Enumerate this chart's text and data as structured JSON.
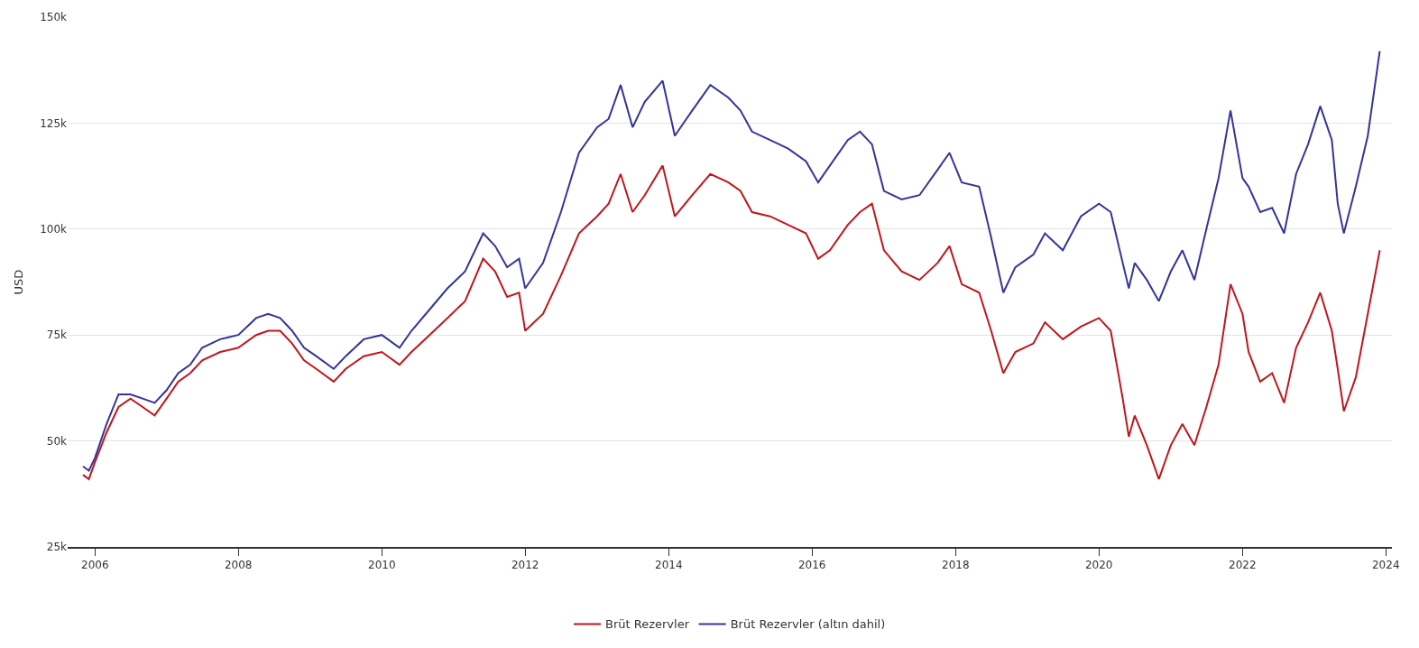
{
  "chart_data": {
    "type": "line",
    "ylabel": "USD",
    "x": [
      "2005-11",
      "2005-12",
      "2006-01",
      "2006-03",
      "2006-05",
      "2006-07",
      "2006-09",
      "2006-11",
      "2007-01",
      "2007-03",
      "2007-05",
      "2007-07",
      "2007-10",
      "2008-01",
      "2008-04",
      "2008-06",
      "2008-08",
      "2008-10",
      "2008-12",
      "2009-02",
      "2009-05",
      "2009-07",
      "2009-10",
      "2010-01",
      "2010-04",
      "2010-06",
      "2010-09",
      "2010-12",
      "2011-03",
      "2011-06",
      "2011-08",
      "2011-10",
      "2011-12",
      "2012-01",
      "2012-04",
      "2012-07",
      "2012-10",
      "2013-01",
      "2013-03",
      "2013-05",
      "2013-07",
      "2013-09",
      "2013-12",
      "2014-02",
      "2014-05",
      "2014-08",
      "2014-11",
      "2015-01",
      "2015-03",
      "2015-06",
      "2015-09",
      "2015-12",
      "2016-02",
      "2016-04",
      "2016-07",
      "2016-09",
      "2016-11",
      "2017-01",
      "2017-04",
      "2017-07",
      "2017-10",
      "2017-12",
      "2018-02",
      "2018-05",
      "2018-07",
      "2018-09",
      "2018-11",
      "2019-02",
      "2019-04",
      "2019-07",
      "2019-10",
      "2020-01",
      "2020-03",
      "2020-05",
      "2020-06",
      "2020-07",
      "2020-09",
      "2020-11",
      "2021-01",
      "2021-03",
      "2021-05",
      "2021-07",
      "2021-09",
      "2021-11",
      "2022-01",
      "2022-02",
      "2022-04",
      "2022-06",
      "2022-08",
      "2022-10",
      "2022-12",
      "2023-02",
      "2023-04",
      "2023-05",
      "2023-06",
      "2023-08",
      "2023-10",
      "2023-12"
    ],
    "series": [
      {
        "name": "Brüt Rezervler",
        "color": "#c0161c",
        "values": [
          42000,
          41000,
          45000,
          52000,
          58000,
          60000,
          58000,
          56000,
          60000,
          64000,
          66000,
          69000,
          71000,
          72000,
          75000,
          76000,
          76000,
          73000,
          69000,
          67000,
          64000,
          67000,
          70000,
          71000,
          68000,
          71000,
          75000,
          79000,
          83000,
          93000,
          90000,
          84000,
          85000,
          76000,
          80000,
          89000,
          99000,
          103000,
          106000,
          113000,
          104000,
          108000,
          115000,
          103000,
          108000,
          113000,
          111000,
          109000,
          104000,
          103000,
          101000,
          99000,
          93000,
          95000,
          101000,
          104000,
          106000,
          95000,
          90000,
          88000,
          92000,
          96000,
          87000,
          85000,
          76000,
          66000,
          71000,
          73000,
          78000,
          74000,
          77000,
          79000,
          76000,
          60000,
          51000,
          56000,
          49000,
          41000,
          49000,
          54000,
          49000,
          58000,
          68000,
          87000,
          80000,
          71000,
          64000,
          66000,
          59000,
          72000,
          78000,
          85000,
          76000,
          67000,
          57000,
          65000,
          80000,
          95000
        ]
      },
      {
        "name": "Brüt Rezervler (altın dahil)",
        "color": "#34349a",
        "values": [
          44000,
          43000,
          46000,
          54000,
          61000,
          61000,
          60000,
          59000,
          62000,
          66000,
          68000,
          72000,
          74000,
          75000,
          79000,
          80000,
          79000,
          76000,
          72000,
          70000,
          67000,
          70000,
          74000,
          75000,
          72000,
          76000,
          81000,
          86000,
          90000,
          99000,
          96000,
          91000,
          93000,
          86000,
          92000,
          104000,
          118000,
          124000,
          126000,
          134000,
          124000,
          130000,
          135000,
          122000,
          128000,
          134000,
          131000,
          128000,
          123000,
          121000,
          119000,
          116000,
          111000,
          115000,
          121000,
          123000,
          120000,
          109000,
          107000,
          108000,
          114000,
          118000,
          111000,
          110000,
          98000,
          85000,
          91000,
          94000,
          99000,
          95000,
          103000,
          106000,
          104000,
          92000,
          86000,
          92000,
          88000,
          83000,
          90000,
          95000,
          88000,
          100000,
          112000,
          128000,
          112000,
          110000,
          104000,
          105000,
          99000,
          113000,
          120000,
          129000,
          121000,
          106000,
          99000,
          110000,
          122000,
          142000
        ]
      }
    ],
    "xlim": [
      "2005-08-15",
      "2024-02-01"
    ],
    "xticks": [
      {
        "value": "2006-01-01",
        "label": "2006"
      },
      {
        "value": "2008-01-01",
        "label": "2008"
      },
      {
        "value": "2010-01-01",
        "label": "2010"
      },
      {
        "value": "2012-01-01",
        "label": "2012"
      },
      {
        "value": "2014-01-01",
        "label": "2014"
      },
      {
        "value": "2016-01-01",
        "label": "2016"
      },
      {
        "value": "2018-01-01",
        "label": "2018"
      },
      {
        "value": "2020-01-01",
        "label": "2020"
      },
      {
        "value": "2022-01-01",
        "label": "2022"
      },
      {
        "value": "2024-01-01",
        "label": "2024"
      }
    ],
    "ylim": [
      25000,
      150000
    ],
    "yticks": [
      {
        "value": 25000,
        "label": "25k"
      },
      {
        "value": 50000,
        "label": "50k"
      },
      {
        "value": 75000,
        "label": "75k"
      },
      {
        "value": 100000,
        "label": "100k"
      },
      {
        "value": 125000,
        "label": "125k"
      },
      {
        "value": 150000,
        "label": "150k"
      }
    ],
    "grid": "y",
    "legend": "bottom",
    "marker": "none",
    "line_style": "solid"
  }
}
